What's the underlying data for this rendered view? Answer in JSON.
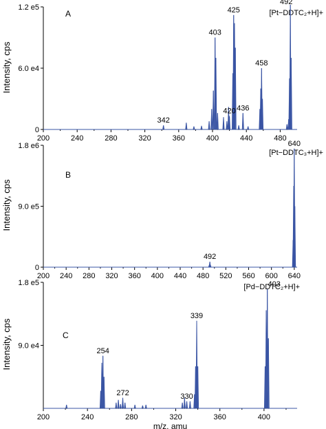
{
  "chart_data": [
    {
      "type": "line",
      "panel_label": "A",
      "ylabel": "Intensity, cps",
      "xlabel": "",
      "xlim": [
        200,
        500
      ],
      "ylim": [
        0,
        120000
      ],
      "xticks": [
        200,
        240,
        280,
        320,
        360,
        400,
        440,
        480
      ],
      "yticks": [
        0,
        60000,
        120000
      ],
      "ytick_labels": [
        "0",
        "6.0 e4",
        "1.2 e5"
      ],
      "legend": "[Pt−DDTC₂+H]+",
      "series": [
        {
          "x": [
            342,
            369,
            378,
            387,
            396,
            399,
            401,
            403,
            404,
            406,
            413,
            417,
            419,
            420,
            424,
            425,
            426,
            427,
            431,
            436,
            442,
            456,
            457,
            458,
            459,
            488,
            490,
            491,
            492,
            493
          ],
          "y": [
            4000,
            6500,
            3000,
            3500,
            8000,
            20000,
            38000,
            90000,
            70000,
            16000,
            12000,
            8000,
            22000,
            13000,
            55000,
            112000,
            104000,
            80000,
            4000,
            16000,
            3000,
            20000,
            40000,
            60000,
            30000,
            5000,
            10000,
            50000,
            122000,
            70000
          ]
        }
      ],
      "annotations": [
        "342",
        "403",
        "420",
        "425",
        "436",
        "458",
        "492"
      ]
    },
    {
      "type": "line",
      "panel_label": "B",
      "ylabel": "Intensity, cps",
      "xlabel": "",
      "xlim": [
        200,
        645
      ],
      "ylim": [
        0,
        1800000
      ],
      "xticks": [
        200,
        240,
        280,
        320,
        360,
        400,
        440,
        480,
        520,
        560,
        600,
        640
      ],
      "yticks": [
        0,
        900000,
        1800000
      ],
      "ytick_labels": [
        "0",
        "9.0 e5",
        "1.8 e6"
      ],
      "legend": "[Pt−DDTC₃+H]+",
      "series": [
        {
          "x": [
            491,
            492,
            493,
            638,
            639,
            640,
            641
          ],
          "y": [
            30000,
            80000,
            30000,
            400000,
            1200000,
            1750000,
            900000
          ]
        }
      ],
      "annotations": [
        "492",
        "640"
      ]
    },
    {
      "type": "line",
      "panel_label": "C",
      "ylabel": "Intensity, cps",
      "xlabel": "m/z, amu",
      "xlim": [
        200,
        430
      ],
      "ylim": [
        0,
        180000
      ],
      "xticks": [
        200,
        240,
        280,
        320,
        360,
        400
      ],
      "yticks": [
        90000,
        180000
      ],
      "ytick_labels": [
        "9.0 e4",
        "1.8 e5"
      ],
      "legend": "[Pd−DDTC₂+H]+",
      "series": [
        {
          "x": [
            221,
            252,
            253,
            254,
            255,
            266,
            268,
            270,
            272,
            274,
            283,
            290,
            293,
            326,
            328,
            330,
            333,
            337,
            338,
            339,
            340,
            401,
            402,
            403,
            404
          ],
          "y": [
            5000,
            25000,
            65000,
            75000,
            45000,
            8000,
            12000,
            6000,
            15000,
            8000,
            5000,
            4000,
            5000,
            8000,
            15000,
            10000,
            10000,
            20000,
            60000,
            125000,
            60000,
            60000,
            140000,
            170000,
            100000
          ]
        }
      ],
      "annotations": [
        "254",
        "272",
        "330",
        "339",
        "403"
      ]
    }
  ]
}
